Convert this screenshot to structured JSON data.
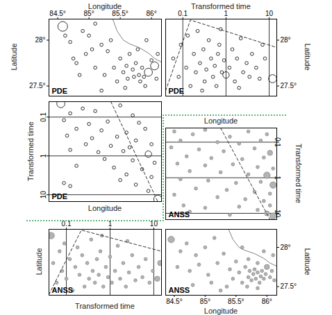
{
  "chart_data": [
    {
      "type": "scatter",
      "annotation": "PDE",
      "xlabel": "Longitude",
      "ylabel": "Latitude",
      "xlim": [
        84.36,
        86.16
      ],
      "ylim": [
        27.39,
        28.23
      ],
      "xticks": [
        {
          "value": 84.5,
          "label": "84.5°"
        },
        {
          "value": 85,
          "label": "85°"
        },
        {
          "value": 85.5,
          "label": "85.5°"
        },
        {
          "value": 86,
          "label": "86°"
        }
      ],
      "yticks": [
        {
          "value": 27.5,
          "label": "27.5°"
        },
        {
          "value": 28,
          "label": "28°"
        }
      ],
      "series": [
        {
          "type": "scatter",
          "marker": "open_circle",
          "color": "#000000",
          "x": [
            84.58,
            84.62,
            84.7,
            84.9,
            85.0,
            85.1,
            84.75,
            84.8,
            84.95,
            85.05,
            85.2,
            85.3,
            85.35,
            85.4,
            85.5,
            85.55,
            85.6,
            85.62,
            85.7,
            85.72,
            85.75,
            85.8,
            85.82,
            85.85,
            85.88,
            85.9,
            85.95,
            86.05,
            86.0,
            85.45,
            85.25,
            85.1,
            84.85,
            85.65,
            85.78,
            86.1,
            85.92,
            85.2,
            85.58,
            86.08
          ],
          "y": [
            28.15,
            28.05,
            27.98,
            28.1,
            28.05,
            28.18,
            27.8,
            27.75,
            27.85,
            27.9,
            27.95,
            27.88,
            28.0,
            27.7,
            27.8,
            27.65,
            27.72,
            27.58,
            27.68,
            27.6,
            27.75,
            27.62,
            27.55,
            27.7,
            27.6,
            27.5,
            27.65,
            27.72,
            27.78,
            27.55,
            27.62,
            27.7,
            27.62,
            27.85,
            27.9,
            27.85,
            28.0,
            27.45,
            27.48,
            27.58
          ],
          "size": [
            3,
            1,
            1,
            1,
            1,
            1,
            1,
            1,
            1,
            1,
            1,
            1,
            1,
            1,
            1,
            1,
            1,
            1,
            1,
            1,
            1,
            1,
            1,
            1,
            1,
            1,
            2.5,
            2.5,
            1,
            1,
            1,
            1,
            1,
            1,
            1,
            1,
            1,
            1,
            1,
            1
          ]
        },
        {
          "type": "line",
          "line_style": "solid",
          "color": "#7f7f7f",
          "x": [
            85.38,
            85.45,
            85.55,
            85.65,
            85.8,
            85.95,
            86.05,
            86.16
          ],
          "y": [
            28.23,
            28.1,
            28.0,
            27.96,
            27.92,
            27.86,
            27.8,
            27.76
          ]
        }
      ]
    },
    {
      "type": "scatter",
      "annotation": "PDE",
      "xlabel": "Transformed time",
      "ylabel": "Latitude",
      "log": "x",
      "grid": "x",
      "xlim": [
        0.04,
        15
      ],
      "ylim": [
        27.39,
        28.23
      ],
      "xticks": [
        0.1,
        1,
        10
      ],
      "yticks": [
        {
          "value": 27.5,
          "label": "27.5°"
        },
        {
          "value": 28,
          "label": "28°"
        }
      ],
      "series": [
        {
          "type": "scatter",
          "marker": "open_circle",
          "color": "#000000",
          "x": [
            0.06,
            0.08,
            0.09,
            0.12,
            0.13,
            0.15,
            0.18,
            0.2,
            0.22,
            0.25,
            0.3,
            0.32,
            0.35,
            0.4,
            0.45,
            0.5,
            0.55,
            0.6,
            0.65,
            0.7,
            0.8,
            0.9,
            1.0,
            1.2,
            1.4,
            1.6,
            1.8,
            2.0,
            2.5,
            3.0,
            3.5,
            4.0,
            5.0,
            6.0,
            7.0,
            8.0,
            12,
            0.28,
            2.2,
            0.75
          ],
          "y": [
            27.8,
            27.6,
            27.95,
            27.7,
            28.05,
            27.5,
            27.85,
            27.65,
            28.1,
            27.75,
            27.9,
            27.55,
            27.68,
            28.0,
            27.8,
            27.6,
            27.72,
            27.5,
            27.85,
            27.95,
            27.65,
            27.78,
            27.62,
            27.7,
            27.9,
            27.55,
            27.8,
            27.48,
            27.65,
            27.75,
            27.6,
            27.85,
            27.7,
            27.58,
            27.95,
            27.8,
            27.58,
            27.45,
            28.02,
            28.12
          ],
          "size": [
            1,
            1,
            1,
            1,
            1,
            1,
            1,
            1,
            1,
            1,
            1,
            1,
            1,
            1,
            1,
            1,
            1,
            1,
            1,
            1,
            1,
            1,
            2,
            1,
            1,
            1,
            1,
            1,
            1,
            1,
            1,
            1,
            1,
            1,
            1,
            1,
            2.5,
            1,
            1,
            1
          ]
        },
        {
          "type": "line",
          "line_style": "dashed",
          "color": "#333333",
          "x": [
            0.04,
            0.15,
            15
          ],
          "y": [
            27.45,
            28.22,
            27.92
          ]
        }
      ]
    },
    {
      "type": "scatter",
      "annotation": "PDE",
      "xlabel": "Longitude",
      "ylabel": "Transformed time",
      "log": "y",
      "grid": "y",
      "tick_labels": "y",
      "xlim": [
        84.36,
        86.16
      ],
      "ylim": [
        15,
        0.04
      ],
      "yticks": [
        0.1,
        1,
        10
      ],
      "series": [
        {
          "type": "scatter",
          "marker": "open_circle",
          "color": "#000000",
          "x": [
            84.55,
            84.7,
            84.9,
            85.1,
            85.5,
            85.7,
            84.6,
            85.0,
            85.3,
            85.8,
            84.8,
            85.2,
            85.6,
            85.9,
            84.65,
            85.05,
            85.45,
            85.75,
            84.95,
            85.35,
            85.65,
            86.0,
            84.7,
            85.15,
            85.55,
            85.95,
            85.25,
            85.7,
            86.05,
            84.8,
            85.4,
            85.85,
            85.6,
            86.0,
            84.6,
            84.7,
            85.75,
            85.95,
            86.1,
            85.5
          ],
          "y": [
            0.045,
            0.08,
            0.06,
            0.07,
            0.05,
            0.09,
            0.12,
            0.15,
            0.13,
            0.14,
            0.2,
            0.22,
            0.25,
            0.2,
            0.3,
            0.35,
            0.32,
            0.4,
            0.5,
            0.55,
            0.6,
            0.5,
            0.7,
            0.8,
            0.75,
            0.9,
            1.2,
            1.3,
            1.5,
            1.8,
            2.0,
            2.2,
            3.0,
            3.5,
            5.0,
            6.0,
            5.5,
            8.0,
            13,
            4.2
          ],
          "size": [
            2.5,
            1,
            1,
            1,
            1,
            1,
            1,
            1,
            1,
            1,
            1,
            1,
            1,
            1,
            1,
            1,
            1,
            1,
            1,
            1,
            1,
            1,
            1,
            1,
            1,
            2,
            1,
            1,
            1,
            1,
            1,
            1,
            1,
            1,
            1,
            1,
            1,
            1,
            2.5,
            1
          ]
        },
        {
          "type": "line",
          "line_style": "dashed",
          "color": "#333333",
          "x": [
            85.35,
            86.1
          ],
          "y": [
            0.04,
            15
          ]
        }
      ]
    },
    {
      "type": "scatter",
      "annotation": "ANSS",
      "xlabel": "Longitude",
      "ylabel": "Transformed time",
      "log": "y",
      "grid": "y",
      "tick_labels": "y",
      "xlim": [
        84.36,
        86.16
      ],
      "ylim": [
        15,
        0.04
      ],
      "yticks": [
        0.1,
        1,
        10
      ],
      "series": [
        {
          "type": "scatter",
          "marker": "filled_circle",
          "color": "#b3b3b3",
          "x": [
            84.5,
            84.8,
            85.0,
            85.4,
            85.7,
            86.0,
            84.6,
            85.2,
            85.55,
            85.9,
            84.45,
            84.9,
            85.3,
            85.8,
            86.05,
            84.7,
            85.1,
            85.6,
            85.95,
            84.55,
            85.0,
            85.45,
            85.85,
            86.1,
            84.75,
            85.25,
            85.7,
            86.0,
            84.6,
            85.05,
            85.5,
            85.9,
            86.1,
            84.85,
            85.35,
            85.8,
            86.05,
            84.5,
            85.2,
            85.65,
            85.95,
            84.65,
            85.0,
            85.55,
            85.85,
            86.0,
            86.1,
            85.4,
            84.75,
            86.05
          ],
          "y": [
            0.05,
            0.06,
            0.045,
            0.07,
            0.05,
            0.06,
            0.09,
            0.1,
            0.11,
            0.09,
            0.14,
            0.16,
            0.18,
            0.15,
            0.2,
            0.25,
            0.28,
            0.3,
            0.27,
            0.4,
            0.45,
            0.42,
            0.5,
            0.55,
            0.65,
            0.7,
            0.8,
            0.85,
            1.1,
            1.2,
            1.4,
            1.3,
            1.6,
            2.0,
            2.2,
            2.5,
            2.8,
            3.0,
            3.5,
            4.0,
            4.5,
            6.0,
            7.0,
            6.5,
            8.0,
            10,
            12,
            11,
            9.0,
            6.0
          ],
          "size": [
            1,
            1,
            1,
            1,
            1,
            1,
            1,
            1,
            1,
            1,
            1,
            1,
            1,
            1,
            1.6,
            1,
            1,
            1,
            1,
            1,
            1,
            1,
            1,
            1,
            1,
            1,
            1,
            2,
            1,
            1,
            1,
            1,
            2,
            1,
            1,
            1,
            1,
            1,
            1,
            1,
            1,
            1,
            1,
            1,
            1,
            1.5,
            2,
            1,
            1,
            1
          ]
        },
        {
          "type": "line",
          "line_style": "dashed",
          "color": "#333333",
          "x": [
            85.25,
            86.05
          ],
          "y": [
            0.04,
            15
          ]
        }
      ]
    },
    {
      "type": "scatter",
      "annotation": "ANSS",
      "xlabel": "Transformed time",
      "ylabel": "Latitude",
      "log": "x",
      "grid": "x",
      "tick_labels": "x",
      "xlim": [
        0.04,
        15
      ],
      "ylim": [
        27.39,
        28.23
      ],
      "xticks": [
        0.1,
        1,
        10
      ],
      "series": [
        {
          "type": "scatter",
          "marker": "filled_circle",
          "color": "#b3b3b3",
          "x": [
            0.045,
            0.05,
            0.06,
            0.07,
            0.08,
            0.09,
            0.1,
            0.12,
            0.14,
            0.16,
            0.18,
            0.2,
            0.23,
            0.26,
            0.3,
            0.33,
            0.37,
            0.4,
            0.45,
            0.5,
            0.55,
            0.6,
            0.7,
            0.8,
            0.9,
            1.0,
            1.1,
            1.3,
            1.5,
            1.7,
            2.0,
            2.3,
            2.7,
            3.2,
            3.8,
            4.5,
            5.5,
            6.5,
            8.0,
            9.5,
            12,
            14,
            0.65,
            2.5
          ],
          "y": [
            28.15,
            27.8,
            27.55,
            27.95,
            27.7,
            28.05,
            27.6,
            27.85,
            27.45,
            27.75,
            28.0,
            27.65,
            27.9,
            27.5,
            27.8,
            27.6,
            28.1,
            27.7,
            27.55,
            27.85,
            27.65,
            27.95,
            27.5,
            27.75,
            27.62,
            27.88,
            27.55,
            27.7,
            28.02,
            27.6,
            27.8,
            27.5,
            27.68,
            27.9,
            27.58,
            27.75,
            27.62,
            27.85,
            27.55,
            27.7,
            27.6,
            27.8,
            28.15,
            28.08
          ],
          "size": [
            2,
            1,
            1,
            1,
            1,
            1,
            1,
            1,
            1,
            1,
            1,
            1,
            1,
            1,
            1,
            1,
            1,
            1,
            1,
            1,
            1,
            1,
            1,
            1,
            1,
            1,
            1,
            1,
            1,
            1,
            1,
            1,
            1,
            1,
            1,
            1,
            1,
            1,
            1,
            1,
            1.6,
            1.6,
            1,
            1
          ]
        },
        {
          "type": "line",
          "line_style": "dashed",
          "color": "#333333",
          "x": [
            0.04,
            0.22,
            15
          ],
          "y": [
            27.4,
            28.22,
            27.95
          ]
        }
      ]
    },
    {
      "type": "scatter",
      "annotation": "ANSS",
      "xlabel": "Longitude",
      "ylabel": "Latitude",
      "xlim": [
        84.36,
        86.16
      ],
      "ylim": [
        27.39,
        28.23
      ],
      "xticks": [
        {
          "value": 84.5,
          "label": "84.5°"
        },
        {
          "value": 85,
          "label": "85°"
        },
        {
          "value": 85.5,
          "label": "85.5°"
        },
        {
          "value": 86,
          "label": "86°"
        }
      ],
      "yticks": [
        {
          "value": 27.5,
          "label": "27.5°"
        },
        {
          "value": 28,
          "label": "28°"
        }
      ],
      "series": [
        {
          "type": "scatter",
          "marker": "filled_circle",
          "color": "#b3b3b3",
          "x": [
            84.45,
            84.6,
            84.7,
            84.85,
            85.0,
            85.15,
            84.55,
            84.75,
            84.9,
            85.05,
            85.2,
            85.3,
            85.4,
            85.45,
            85.5,
            85.55,
            85.6,
            85.65,
            85.7,
            85.72,
            85.75,
            85.78,
            85.8,
            85.82,
            85.85,
            85.88,
            85.9,
            85.92,
            85.95,
            85.98,
            86.0,
            86.05,
            86.08,
            86.12,
            85.85,
            85.7,
            85.35,
            85.1,
            84.8,
            86.1,
            85.95,
            85.6,
            85.25,
            85.85,
            85.68
          ],
          "y": [
            28.1,
            27.95,
            28.05,
            27.9,
            28.0,
            28.12,
            27.75,
            27.7,
            27.78,
            27.65,
            27.8,
            27.92,
            27.72,
            27.6,
            27.82,
            27.68,
            27.55,
            27.75,
            27.62,
            27.7,
            27.58,
            27.66,
            27.72,
            27.6,
            27.68,
            27.55,
            27.63,
            27.7,
            27.6,
            27.66,
            27.75,
            27.62,
            27.7,
            27.58,
            27.8,
            27.85,
            27.5,
            27.55,
            27.52,
            27.9,
            27.95,
            28.0,
            27.45,
            27.48,
            27.5
          ],
          "size": [
            2,
            1,
            1,
            1,
            1,
            1,
            1,
            1,
            1,
            1,
            1,
            1,
            1,
            1,
            1,
            1,
            1,
            1,
            1,
            1,
            1,
            1,
            1,
            1,
            1,
            1,
            1,
            1,
            1,
            1,
            1.6,
            1,
            1,
            1,
            1,
            1,
            1,
            1,
            1,
            1,
            1,
            1,
            1,
            1,
            1
          ]
        },
        {
          "type": "line",
          "line_style": "solid",
          "color": "#7f7f7f",
          "x": [
            85.38,
            85.45,
            85.55,
            85.65,
            85.8,
            85.95,
            86.05,
            86.16
          ],
          "y": [
            28.23,
            28.1,
            28.0,
            27.96,
            27.92,
            27.86,
            27.8,
            27.76
          ]
        }
      ]
    }
  ]
}
